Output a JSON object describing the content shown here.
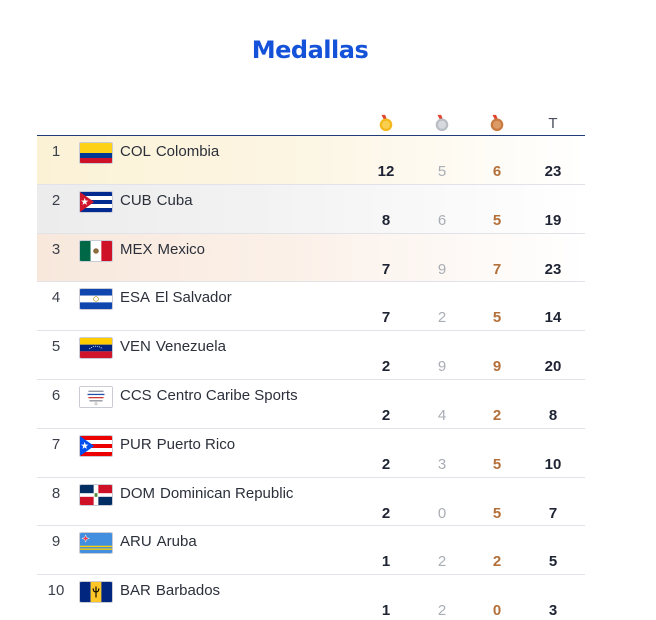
{
  "page": {
    "title": "Medallas"
  },
  "header": {
    "gold_icon": "gold-medal-icon",
    "silver_icon": "silver-medal-icon",
    "bronze_icon": "bronze-medal-icon",
    "total_label": "T"
  },
  "colors": {
    "title": "#1452d9",
    "gold_row": "#fbf2d6",
    "silver_row": "#ececec",
    "bronze_row": "#f8e8dc",
    "bronze_text": "#b4703a"
  },
  "rows": [
    {
      "rank": "1",
      "code": "COL",
      "name": "Colombia",
      "gold": "12",
      "silver": "5",
      "bronze": "6",
      "total": "23",
      "flag": "colombia-flag-icon"
    },
    {
      "rank": "2",
      "code": "CUB",
      "name": "Cuba",
      "gold": "8",
      "silver": "6",
      "bronze": "5",
      "total": "19",
      "flag": "cuba-flag-icon"
    },
    {
      "rank": "3",
      "code": "MEX",
      "name": "Mexico",
      "gold": "7",
      "silver": "9",
      "bronze": "7",
      "total": "23",
      "flag": "mexico-flag-icon"
    },
    {
      "rank": "4",
      "code": "ESA",
      "name": "El Salvador",
      "gold": "7",
      "silver": "2",
      "bronze": "5",
      "total": "14",
      "flag": "el-salvador-flag-icon"
    },
    {
      "rank": "5",
      "code": "VEN",
      "name": "Venezuela",
      "gold": "2",
      "silver": "9",
      "bronze": "9",
      "total": "20",
      "flag": "venezuela-flag-icon"
    },
    {
      "rank": "6",
      "code": "CCS",
      "name": "Centro Caribe Sports",
      "gold": "2",
      "silver": "4",
      "bronze": "2",
      "total": "8",
      "flag": "centro-caribe-sports-logo-icon"
    },
    {
      "rank": "7",
      "code": "PUR",
      "name": "Puerto Rico",
      "gold": "2",
      "silver": "3",
      "bronze": "5",
      "total": "10",
      "flag": "puerto-rico-flag-icon"
    },
    {
      "rank": "8",
      "code": "DOM",
      "name": "Dominican Republic",
      "gold": "2",
      "silver": "0",
      "bronze": "5",
      "total": "7",
      "flag": "dominican-republic-flag-icon"
    },
    {
      "rank": "9",
      "code": "ARU",
      "name": "Aruba",
      "gold": "1",
      "silver": "2",
      "bronze": "2",
      "total": "5",
      "flag": "aruba-flag-icon"
    },
    {
      "rank": "10",
      "code": "BAR",
      "name": "Barbados",
      "gold": "1",
      "silver": "2",
      "bronze": "0",
      "total": "3",
      "flag": "barbados-flag-icon"
    }
  ]
}
